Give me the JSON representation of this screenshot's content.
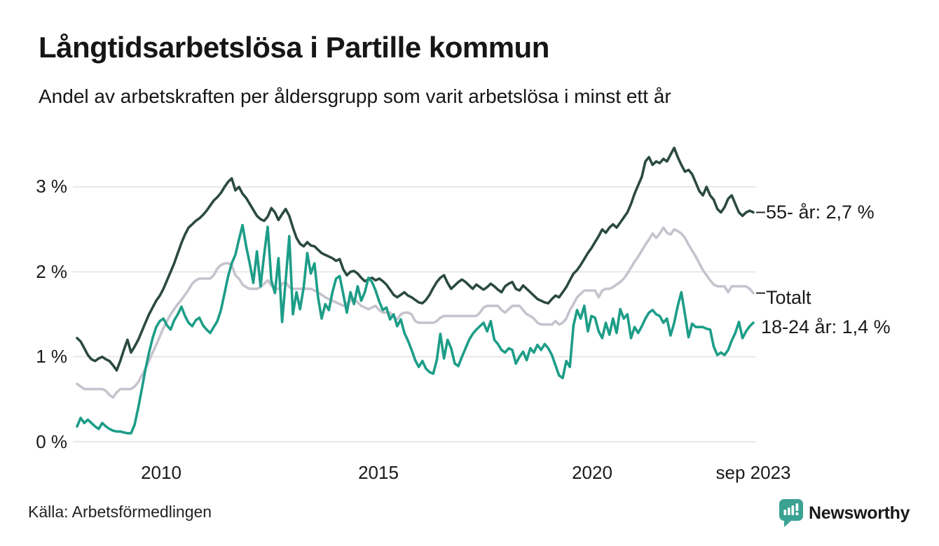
{
  "header": {
    "title": "Långtidsarbetslösa i Partille kommun",
    "subtitle": "Andel av arbetskraften per åldersgrupp som varit arbetslösa i minst ett år"
  },
  "footer": {
    "source": "Källa: Arbetsförmedlingen",
    "brand": {
      "name": "Newsworthy",
      "color": "#3aa292",
      "icon": "bar-chart-speech-bubble-icon"
    }
  },
  "colors": {
    "grid": "#e8e8e8",
    "text": "#1a1a1a",
    "connector": "#2b2b2b",
    "background": "#ffffff"
  },
  "chart_data": {
    "type": "line",
    "unit": "%",
    "x_start": "2008-01",
    "x_end": "2023-09",
    "frequency": "monthly",
    "grid": true,
    "legend_position": "right-end-labels",
    "ylim": [
      0,
      3.6
    ],
    "yticks": [
      {
        "label": "0 %",
        "value": 0
      },
      {
        "label": "1 %",
        "value": 1
      },
      {
        "label": "2 %",
        "value": 2
      },
      {
        "label": "3 %",
        "value": 3
      }
    ],
    "xticks": [
      {
        "label": "2010",
        "index": 24
      },
      {
        "label": "2015",
        "index": 84
      },
      {
        "label": "2020",
        "index": 144
      },
      {
        "label": "sep 2023",
        "index": 188
      }
    ],
    "draw_order": [
      1,
      0,
      2
    ],
    "series": [
      {
        "name": "55- år",
        "end_label": "55- år: 2,7 %",
        "last_value": 2.7,
        "color": "#2b4a40",
        "has_connector_dash": true,
        "values": [
          1.22,
          1.18,
          1.1,
          1.02,
          0.97,
          0.95,
          0.98,
          1.0,
          0.97,
          0.95,
          0.9,
          0.84,
          0.95,
          1.08,
          1.2,
          1.05,
          1.12,
          1.2,
          1.3,
          1.4,
          1.5,
          1.58,
          1.66,
          1.72,
          1.8,
          1.9,
          2.0,
          2.1,
          2.22,
          2.34,
          2.44,
          2.52,
          2.56,
          2.6,
          2.63,
          2.67,
          2.72,
          2.78,
          2.84,
          2.88,
          2.93,
          3.0,
          3.06,
          3.1,
          2.96,
          3.0,
          2.92,
          2.87,
          2.8,
          2.73,
          2.66,
          2.62,
          2.6,
          2.65,
          2.75,
          2.7,
          2.61,
          2.68,
          2.74,
          2.66,
          2.52,
          2.4,
          2.33,
          2.3,
          2.35,
          2.31,
          2.3,
          2.26,
          2.22,
          2.2,
          2.18,
          2.16,
          2.13,
          2.15,
          2.03,
          1.96,
          2.0,
          2.01,
          1.98,
          1.93,
          1.89,
          1.91,
          1.93,
          1.9,
          1.92,
          1.89,
          1.85,
          1.79,
          1.73,
          1.7,
          1.73,
          1.76,
          1.72,
          1.7,
          1.67,
          1.64,
          1.63,
          1.67,
          1.73,
          1.81,
          1.88,
          1.93,
          1.96,
          1.87,
          1.8,
          1.84,
          1.88,
          1.91,
          1.88,
          1.84,
          1.8,
          1.85,
          1.82,
          1.79,
          1.82,
          1.86,
          1.83,
          1.79,
          1.76,
          1.83,
          1.86,
          1.88,
          1.8,
          1.78,
          1.84,
          1.8,
          1.76,
          1.72,
          1.68,
          1.66,
          1.64,
          1.63,
          1.68,
          1.72,
          1.7,
          1.76,
          1.82,
          1.9,
          1.98,
          2.02,
          2.08,
          2.15,
          2.22,
          2.28,
          2.35,
          2.42,
          2.5,
          2.46,
          2.52,
          2.56,
          2.52,
          2.58,
          2.64,
          2.7,
          2.8,
          2.92,
          3.02,
          3.12,
          3.3,
          3.35,
          3.26,
          3.3,
          3.28,
          3.33,
          3.3,
          3.38,
          3.46,
          3.35,
          3.26,
          3.18,
          3.2,
          3.15,
          3.05,
          2.95,
          2.9,
          3.0,
          2.9,
          2.85,
          2.74,
          2.7,
          2.76,
          2.86,
          2.9,
          2.8,
          2.7,
          2.66,
          2.7,
          2.72,
          2.7
        ]
      },
      {
        "name": "Totalt",
        "end_label": "Totalt",
        "last_value": 1.75,
        "color": "#c6c3ce",
        "has_connector_dash": true,
        "values": [
          0.68,
          0.65,
          0.62,
          0.62,
          0.62,
          0.62,
          0.62,
          0.62,
          0.6,
          0.55,
          0.52,
          0.58,
          0.62,
          0.62,
          0.62,
          0.62,
          0.65,
          0.7,
          0.78,
          0.86,
          0.95,
          1.05,
          1.14,
          1.24,
          1.34,
          1.42,
          1.5,
          1.56,
          1.62,
          1.67,
          1.73,
          1.79,
          1.86,
          1.9,
          1.92,
          1.92,
          1.92,
          1.92,
          1.96,
          2.04,
          2.08,
          2.1,
          2.1,
          2.08,
          1.96,
          1.92,
          1.85,
          1.82,
          1.8,
          1.8,
          1.8,
          1.82,
          1.86,
          1.9,
          1.84,
          1.8,
          1.8,
          1.86,
          1.88,
          1.82,
          1.8,
          1.8,
          1.8,
          1.8,
          1.8,
          1.8,
          1.78,
          1.76,
          1.73,
          1.7,
          1.68,
          1.66,
          1.64,
          1.62,
          1.6,
          1.63,
          1.66,
          1.68,
          1.64,
          1.6,
          1.58,
          1.56,
          1.58,
          1.6,
          1.55,
          1.52,
          1.52,
          1.52,
          1.47,
          1.44,
          1.5,
          1.52,
          1.52,
          1.5,
          1.42,
          1.4,
          1.4,
          1.4,
          1.4,
          1.4,
          1.42,
          1.46,
          1.48,
          1.48,
          1.48,
          1.48,
          1.48,
          1.48,
          1.48,
          1.48,
          1.48,
          1.48,
          1.52,
          1.58,
          1.6,
          1.6,
          1.6,
          1.6,
          1.55,
          1.52,
          1.56,
          1.6,
          1.6,
          1.6,
          1.55,
          1.5,
          1.48,
          1.45,
          1.4,
          1.38,
          1.38,
          1.38,
          1.38,
          1.42,
          1.38,
          1.4,
          1.45,
          1.55,
          1.62,
          1.7,
          1.74,
          1.78,
          1.78,
          1.78,
          1.78,
          1.7,
          1.78,
          1.8,
          1.8,
          1.82,
          1.85,
          1.88,
          1.92,
          1.98,
          2.05,
          2.12,
          2.18,
          2.25,
          2.32,
          2.38,
          2.45,
          2.4,
          2.45,
          2.52,
          2.46,
          2.44,
          2.5,
          2.48,
          2.45,
          2.4,
          2.32,
          2.25,
          2.18,
          2.1,
          2.02,
          1.96,
          1.9,
          1.85,
          1.83,
          1.83,
          1.83,
          1.76,
          1.83,
          1.83,
          1.83,
          1.83,
          1.83,
          1.8,
          1.75
        ]
      },
      {
        "name": "18-24 år",
        "end_label": "18-24 år: 1,4 %",
        "last_value": 1.4,
        "color": "#1d9d88",
        "has_connector_dash": false,
        "values": [
          0.18,
          0.28,
          0.22,
          0.26,
          0.22,
          0.18,
          0.15,
          0.22,
          0.18,
          0.15,
          0.13,
          0.12,
          0.12,
          0.11,
          0.1,
          0.1,
          0.2,
          0.4,
          0.62,
          0.85,
          1.05,
          1.22,
          1.35,
          1.42,
          1.45,
          1.37,
          1.32,
          1.43,
          1.5,
          1.59,
          1.48,
          1.4,
          1.36,
          1.43,
          1.46,
          1.37,
          1.32,
          1.28,
          1.35,
          1.42,
          1.55,
          1.75,
          1.95,
          2.1,
          2.2,
          2.38,
          2.55,
          2.3,
          2.1,
          1.87,
          2.24,
          1.83,
          2.2,
          2.53,
          1.9,
          1.75,
          2.16,
          1.41,
          1.9,
          2.42,
          1.5,
          1.76,
          1.56,
          1.82,
          2.22,
          1.98,
          2.1,
          1.7,
          1.45,
          1.62,
          1.55,
          1.76,
          1.92,
          1.95,
          1.74,
          1.52,
          1.76,
          1.62,
          1.83,
          1.66,
          1.76,
          1.93,
          1.88,
          1.78,
          1.65,
          1.55,
          1.58,
          1.44,
          1.5,
          1.36,
          1.44,
          1.28,
          1.19,
          1.08,
          0.96,
          0.88,
          0.95,
          0.86,
          0.82,
          0.8,
          0.96,
          1.27,
          0.98,
          1.2,
          1.1,
          0.92,
          0.89,
          1.0,
          1.1,
          1.2,
          1.27,
          1.32,
          1.36,
          1.4,
          1.3,
          1.42,
          1.2,
          1.15,
          1.08,
          1.05,
          1.1,
          1.08,
          0.92,
          1.0,
          1.06,
          0.96,
          1.1,
          1.05,
          1.14,
          1.08,
          1.15,
          1.1,
          1.02,
          0.9,
          0.78,
          0.75,
          0.95,
          0.88,
          1.37,
          1.55,
          1.45,
          1.6,
          1.3,
          1.48,
          1.46,
          1.3,
          1.22,
          1.4,
          1.26,
          1.45,
          1.28,
          1.56,
          1.45,
          1.5,
          1.22,
          1.35,
          1.28,
          1.36,
          1.45,
          1.52,
          1.55,
          1.5,
          1.48,
          1.4,
          1.45,
          1.25,
          1.4,
          1.6,
          1.76,
          1.5,
          1.23,
          1.39,
          1.35,
          1.35,
          1.35,
          1.33,
          1.32,
          1.12,
          1.02,
          1.05,
          1.02,
          1.08,
          1.19,
          1.28,
          1.41,
          1.22,
          1.3,
          1.36,
          1.4
        ]
      }
    ]
  }
}
